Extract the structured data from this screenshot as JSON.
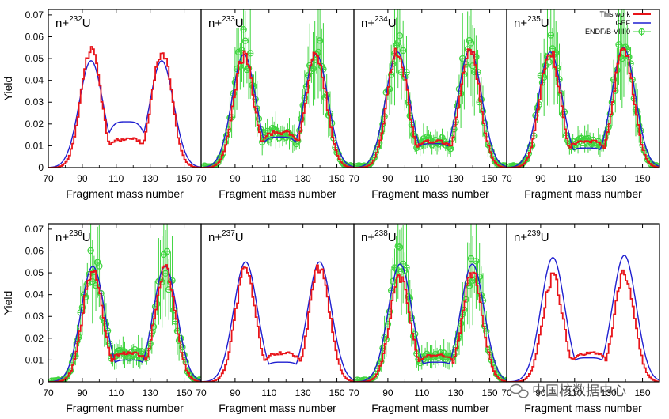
{
  "chart_data": {
    "type": "line",
    "ylabel": "Yield",
    "xlabel": "Fragment mass number",
    "xlim": [
      70,
      160
    ],
    "ylim": [
      0,
      0.0725
    ],
    "x_ticks": [
      70,
      90,
      110,
      130,
      150
    ],
    "y_ticks": [
      0,
      0.01,
      0.02,
      0.03,
      0.04,
      0.05,
      0.06,
      0.07
    ],
    "y_tick_labels": [
      "0",
      "0.01",
      "0.02",
      "0.03",
      "0.04",
      "0.05",
      "0.06",
      "0.07"
    ],
    "legend": {
      "placement": "top-right of first row, fourth panel",
      "entries": [
        {
          "label": "This work",
          "color": "#e8141a",
          "style": "step"
        },
        {
          "label": "GEF",
          "color": "#1f1fd0",
          "style": "line"
        },
        {
          "label": "ENDF/B-VIII.0",
          "color": "#3ed43e",
          "style": "circle-errorbar"
        }
      ]
    },
    "colors": {
      "this_work": "#e8141a",
      "gef": "#1f1fd0",
      "endf": "#3ed43e"
    },
    "panels": [
      {
        "label": "n+",
        "mass": "232",
        "element": "U",
        "light_peak": 95.2,
        "heavy_peak": 136.8,
        "this_work_peaks": [
          0.054,
          0.053
        ],
        "gef_peaks": [
          0.049,
          0.049
        ],
        "this_work_valley": 0.013,
        "gef_valley": 0.021,
        "endf": false
      },
      {
        "label": "n+",
        "mass": "233",
        "element": "U",
        "light_peak": 95.2,
        "heavy_peak": 137.8,
        "this_work_peaks": [
          0.051,
          0.052
        ],
        "gef_peaks": [
          0.052,
          0.052
        ],
        "this_work_valley": 0.016,
        "gef_valley": 0.014,
        "endf": true,
        "endf_peaks": [
          0.054,
          0.054
        ]
      },
      {
        "label": "n+",
        "mass": "234",
        "element": "U",
        "light_peak": 95.7,
        "heavy_peak": 138.3,
        "this_work_peaks": [
          0.054,
          0.054
        ],
        "gef_peaks": [
          0.053,
          0.054
        ],
        "this_work_valley": 0.012,
        "gef_valley": 0.011,
        "endf": true,
        "endf_peaks": [
          0.056,
          0.055
        ]
      },
      {
        "label": "n+",
        "mass": "235",
        "element": "U",
        "light_peak": 95.7,
        "heavy_peak": 138.8,
        "this_work_peaks": [
          0.053,
          0.054
        ],
        "gef_peaks": [
          0.053,
          0.055
        ],
        "this_work_valley": 0.012,
        "gef_valley": 0.009,
        "endf": true,
        "endf_peaks": [
          0.055,
          0.056
        ]
      },
      {
        "label": "n+",
        "mass": "236",
        "element": "U",
        "light_peak": 96.2,
        "heavy_peak": 138.8,
        "this_work_peaks": [
          0.051,
          0.052
        ],
        "gef_peaks": [
          0.053,
          0.053
        ],
        "this_work_valley": 0.013,
        "gef_valley": 0.01,
        "endf": true,
        "endf_peaks": [
          0.055,
          0.054
        ]
      },
      {
        "label": "n+",
        "mass": "237",
        "element": "U",
        "light_peak": 96.2,
        "heavy_peak": 139.8,
        "this_work_peaks": [
          0.052,
          0.053
        ],
        "gef_peaks": [
          0.055,
          0.055
        ],
        "this_work_valley": 0.013,
        "gef_valley": 0.009,
        "endf": false
      },
      {
        "label": "n+",
        "mass": "238",
        "element": "U",
        "light_peak": 97.2,
        "heavy_peak": 139.8,
        "this_work_peaks": [
          0.048,
          0.049
        ],
        "gef_peaks": [
          0.054,
          0.054
        ],
        "this_work_valley": 0.012,
        "gef_valley": 0.009,
        "endf": true,
        "endf_peaks": [
          0.054,
          0.053
        ]
      },
      {
        "label": "n+",
        "mass": "239",
        "element": "U",
        "light_peak": 97.2,
        "heavy_peak": 139.3,
        "this_work_peaks": [
          0.048,
          0.049
        ],
        "gef_peaks": [
          0.057,
          0.058
        ],
        "this_work_valley": 0.013,
        "gef_valley": 0.011,
        "endf": false
      }
    ]
  },
  "watermark": {
    "text": "中国核数据中心",
    "icon": "wechat-icon"
  }
}
